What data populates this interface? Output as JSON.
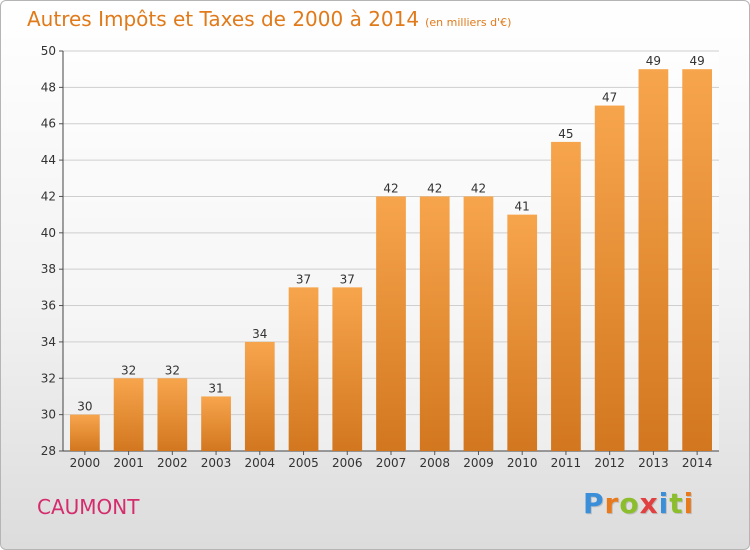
{
  "chart_data": {
    "type": "bar",
    "title": "Autres Impôts et Taxes de 2000 à 2014",
    "unit_label": "(en milliers d'€)",
    "categories": [
      "2000",
      "2001",
      "2002",
      "2003",
      "2004",
      "2005",
      "2006",
      "2007",
      "2008",
      "2009",
      "2010",
      "2011",
      "2012",
      "2013",
      "2014"
    ],
    "values": [
      30,
      32,
      32,
      31,
      34,
      37,
      37,
      42,
      42,
      42,
      41,
      45,
      47,
      49,
      49
    ],
    "ylim": [
      28,
      50
    ],
    "yticks": [
      28,
      30,
      32,
      34,
      36,
      38,
      40,
      42,
      44,
      46,
      48,
      50
    ],
    "grid": true,
    "bar_color_top": "#f7a54d",
    "bar_color_bottom": "#d2771f"
  },
  "footer": {
    "place": "CAUMONT",
    "brand_letters": [
      "P",
      "r",
      "o",
      "x",
      "i",
      "t",
      "i"
    ],
    "brand_colors": [
      "#3b8fd9",
      "#e87a1e",
      "#8bbd2c",
      "#e04040",
      "#3b8fd9",
      "#8bbd2c",
      "#e87a1e"
    ]
  }
}
